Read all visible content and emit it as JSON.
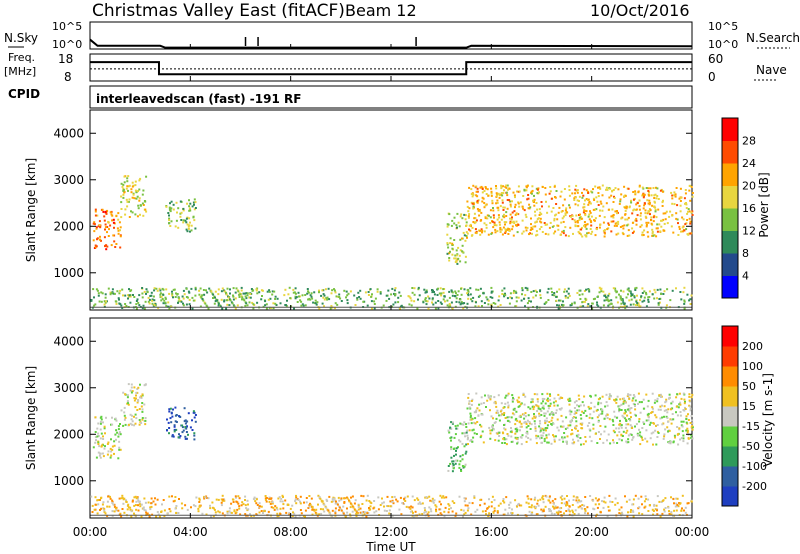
{
  "header": {
    "title": "Christmas Valley East (fitACF)",
    "beam": "Beam 12",
    "date": "10/Oct/2016"
  },
  "labels": {
    "nsky": "N.Sky",
    "nsearch": "N.Search",
    "freq_line1": "Freq.",
    "freq_line2": "[MHz]",
    "nave": "Nave",
    "cpid": "CPID",
    "cpid_value": "interleavedscan (fast) -191 RF",
    "xlabel": "Time UT"
  },
  "chart_data": [
    {
      "type": "line",
      "name": "noise",
      "ylabel": "N.Sky",
      "y_ticks_left": [
        "10^5",
        "10^0"
      ],
      "y_ticks_right": [
        "10^5",
        "10^0"
      ],
      "series": [
        {
          "name": "N.Sky",
          "x": [
            0,
            0.3,
            2.8,
            3.0,
            15.0,
            15.2,
            24.0
          ],
          "y": [
            0.35,
            0.12,
            0.12,
            0.05,
            0.05,
            0.12,
            0.1
          ]
        }
      ],
      "spikes_x": [
        6.2,
        6.7,
        13.0
      ],
      "ylim": [
        0,
        1
      ]
    },
    {
      "type": "line",
      "name": "frequency",
      "ylabel": "Freq. [MHz]",
      "y_ticks_left": [
        18,
        8
      ],
      "y_ticks_right": [
        60,
        0
      ],
      "ylim": [
        8,
        18
      ],
      "series": [
        {
          "name": "Freq.",
          "x": [
            0,
            2.75,
            2.75,
            15.0,
            15.0,
            24.0
          ],
          "y": [
            15.0,
            15.0,
            10.5,
            10.5,
            15.0,
            15.0
          ]
        },
        {
          "name": "Nave",
          "x": [
            0,
            24
          ],
          "y": [
            12.5,
            12.5
          ]
        }
      ]
    },
    {
      "type": "heatmap",
      "name": "power",
      "ylabel": "Slant Range [km]",
      "colorbar_label": "Power [dB]",
      "colorbar_ticks": [
        28,
        24,
        20,
        16,
        12,
        8,
        4
      ],
      "colorbar_colors": [
        "#0000ff",
        "#234a8c",
        "#2f8a5a",
        "#79c141",
        "#e8d640",
        "#ffa400",
        "#ff4b00",
        "#ff0000"
      ],
      "y_ticks": [
        1000,
        2000,
        3000,
        4000
      ],
      "ylim": [
        200,
        4500
      ],
      "xlim": [
        0,
        24
      ],
      "regions": [
        {
          "x": [
            0.1,
            1.2
          ],
          "y": [
            1500,
            2400
          ],
          "level": 0.8
        },
        {
          "x": [
            1.2,
            2.2
          ],
          "y": [
            2200,
            3100
          ],
          "level": 0.55
        },
        {
          "x": [
            3.0,
            4.2
          ],
          "y": [
            1900,
            2600
          ],
          "level": 0.45
        },
        {
          "x": [
            14.2,
            15.0
          ],
          "y": [
            1200,
            2300
          ],
          "level": 0.5
        },
        {
          "x": [
            15.0,
            24.0
          ],
          "y": [
            1800,
            2900
          ],
          "level": 0.65
        },
        {
          "x": [
            0.0,
            24.0
          ],
          "y": [
            250,
            700
          ],
          "level": 0.4
        }
      ]
    },
    {
      "type": "heatmap",
      "name": "velocity",
      "ylabel": "Slant Range [km]",
      "colorbar_label": "Velocity [m s-1]",
      "colorbar_ticks": [
        200,
        100,
        50,
        15,
        -15,
        -50,
        -100,
        -200
      ],
      "colorbar_colors": [
        "#1f3fc0",
        "#2f5fa0",
        "#2f9a5a",
        "#60d040",
        "#c8c8c0",
        "#f0c020",
        "#ff8c00",
        "#ff3c00",
        "#ff0000"
      ],
      "y_ticks": [
        1000,
        2000,
        3000,
        4000
      ],
      "ylim": [
        200,
        4500
      ],
      "xlim": [
        0,
        24
      ],
      "regions": [
        {
          "x": [
            0.1,
            1.2
          ],
          "y": [
            1500,
            2400
          ],
          "level": 0.5
        },
        {
          "x": [
            1.2,
            2.2
          ],
          "y": [
            2200,
            3100
          ],
          "level": 0.5
        },
        {
          "x": [
            3.0,
            4.2
          ],
          "y": [
            1900,
            2600
          ],
          "level": 0.1
        },
        {
          "x": [
            14.2,
            15.0
          ],
          "y": [
            1200,
            2300
          ],
          "level": 0.35
        },
        {
          "x": [
            15.0,
            24.0
          ],
          "y": [
            1800,
            2900
          ],
          "level": 0.5
        },
        {
          "x": [
            0.0,
            24.0
          ],
          "y": [
            250,
            700
          ],
          "level": 0.62
        }
      ]
    }
  ],
  "x_axis": {
    "ticks": [
      "00:00",
      "04:00",
      "08:00",
      "12:00",
      "16:00",
      "20:00",
      "00:00"
    ],
    "tick_hours": [
      0,
      4,
      8,
      12,
      16,
      20,
      24
    ],
    "label": "Time UT"
  }
}
